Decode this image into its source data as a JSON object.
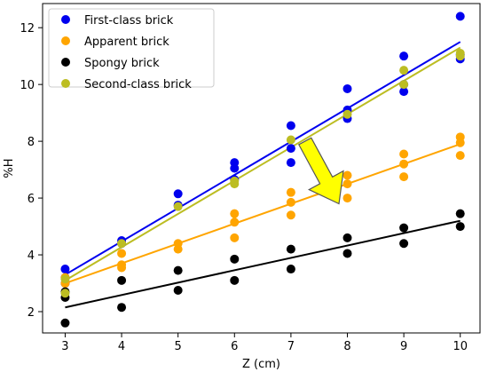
{
  "chart_data": {
    "type": "scatter",
    "title": "",
    "xlabel": "Z (cm)",
    "ylabel": "%H",
    "xlim": [
      2.6,
      10.35
    ],
    "ylim": [
      1.25,
      12.85
    ],
    "xticks": [
      3,
      4,
      5,
      6,
      7,
      8,
      9,
      10
    ],
    "yticks": [
      2,
      4,
      6,
      8,
      10,
      12
    ],
    "grid": false,
    "legend_position": "top-left",
    "series": [
      {
        "name": "First-class brick",
        "color": "#0000ee",
        "points": [
          [
            3,
            3.5
          ],
          [
            3,
            3.2
          ],
          [
            3,
            3.0
          ],
          [
            4,
            4.5
          ],
          [
            4,
            4.4
          ],
          [
            5,
            6.15
          ],
          [
            5,
            5.75
          ],
          [
            6,
            7.25
          ],
          [
            6,
            7.05
          ],
          [
            6,
            6.65
          ],
          [
            7,
            8.55
          ],
          [
            7,
            7.75
          ],
          [
            7,
            7.25
          ],
          [
            8,
            9.85
          ],
          [
            8,
            9.1
          ],
          [
            8,
            8.8
          ],
          [
            9,
            11.0
          ],
          [
            9,
            10.0
          ],
          [
            9,
            9.75
          ],
          [
            10,
            12.4
          ],
          [
            10,
            11.05
          ],
          [
            10,
            10.9
          ]
        ],
        "fit": [
          [
            3,
            3.3
          ],
          [
            10,
            11.5
          ]
        ]
      },
      {
        "name": "Apparent brick",
        "color": "#ffa500",
        "points": [
          [
            3,
            3.2
          ],
          [
            3,
            3.0
          ],
          [
            4,
            4.05
          ],
          [
            4,
            3.65
          ],
          [
            4,
            3.55
          ],
          [
            5,
            4.4
          ],
          [
            5,
            4.2
          ],
          [
            6,
            5.45
          ],
          [
            6,
            5.15
          ],
          [
            6,
            4.6
          ],
          [
            7,
            6.2
          ],
          [
            7,
            5.85
          ],
          [
            7,
            5.4
          ],
          [
            8,
            6.8
          ],
          [
            8,
            6.5
          ],
          [
            8,
            6.0
          ],
          [
            9,
            7.55
          ],
          [
            9,
            7.2
          ],
          [
            9,
            6.75
          ],
          [
            10,
            8.15
          ],
          [
            10,
            7.95
          ],
          [
            10,
            7.5
          ]
        ],
        "fit": [
          [
            3,
            3.0
          ],
          [
            10,
            7.9
          ]
        ]
      },
      {
        "name": "Spongy brick",
        "color": "#000000",
        "points": [
          [
            3,
            2.7
          ],
          [
            3,
            2.5
          ],
          [
            3,
            1.6
          ],
          [
            4,
            3.1
          ],
          [
            4,
            2.15
          ],
          [
            5,
            3.45
          ],
          [
            5,
            2.75
          ],
          [
            6,
            3.85
          ],
          [
            6,
            3.1
          ],
          [
            7,
            4.2
          ],
          [
            7,
            3.5
          ],
          [
            8,
            4.6
          ],
          [
            8,
            4.05
          ],
          [
            9,
            4.95
          ],
          [
            9,
            4.4
          ],
          [
            10,
            5.45
          ],
          [
            10,
            5.0
          ]
        ],
        "fit": [
          [
            3,
            2.15
          ],
          [
            10,
            5.2
          ]
        ]
      },
      {
        "name": "Second-class brick",
        "color": "#bcbd22",
        "points": [
          [
            3,
            3.15
          ],
          [
            3,
            2.65
          ],
          [
            4,
            4.4
          ],
          [
            5,
            5.7
          ],
          [
            6,
            6.6
          ],
          [
            6,
            6.5
          ],
          [
            7,
            8.05
          ],
          [
            8,
            8.95
          ],
          [
            9,
            10.5
          ],
          [
            9,
            10.0
          ],
          [
            10,
            11.1
          ],
          [
            10,
            11.0
          ]
        ],
        "fit": [
          [
            3,
            3.1
          ],
          [
            10,
            11.3
          ]
        ]
      }
    ],
    "annotations": [
      {
        "type": "arrow",
        "color": "#ffff00",
        "edge_color": "#555555",
        "from": [
          7.25,
          8.0
        ],
        "to": [
          7.85,
          5.8
        ]
      }
    ]
  }
}
